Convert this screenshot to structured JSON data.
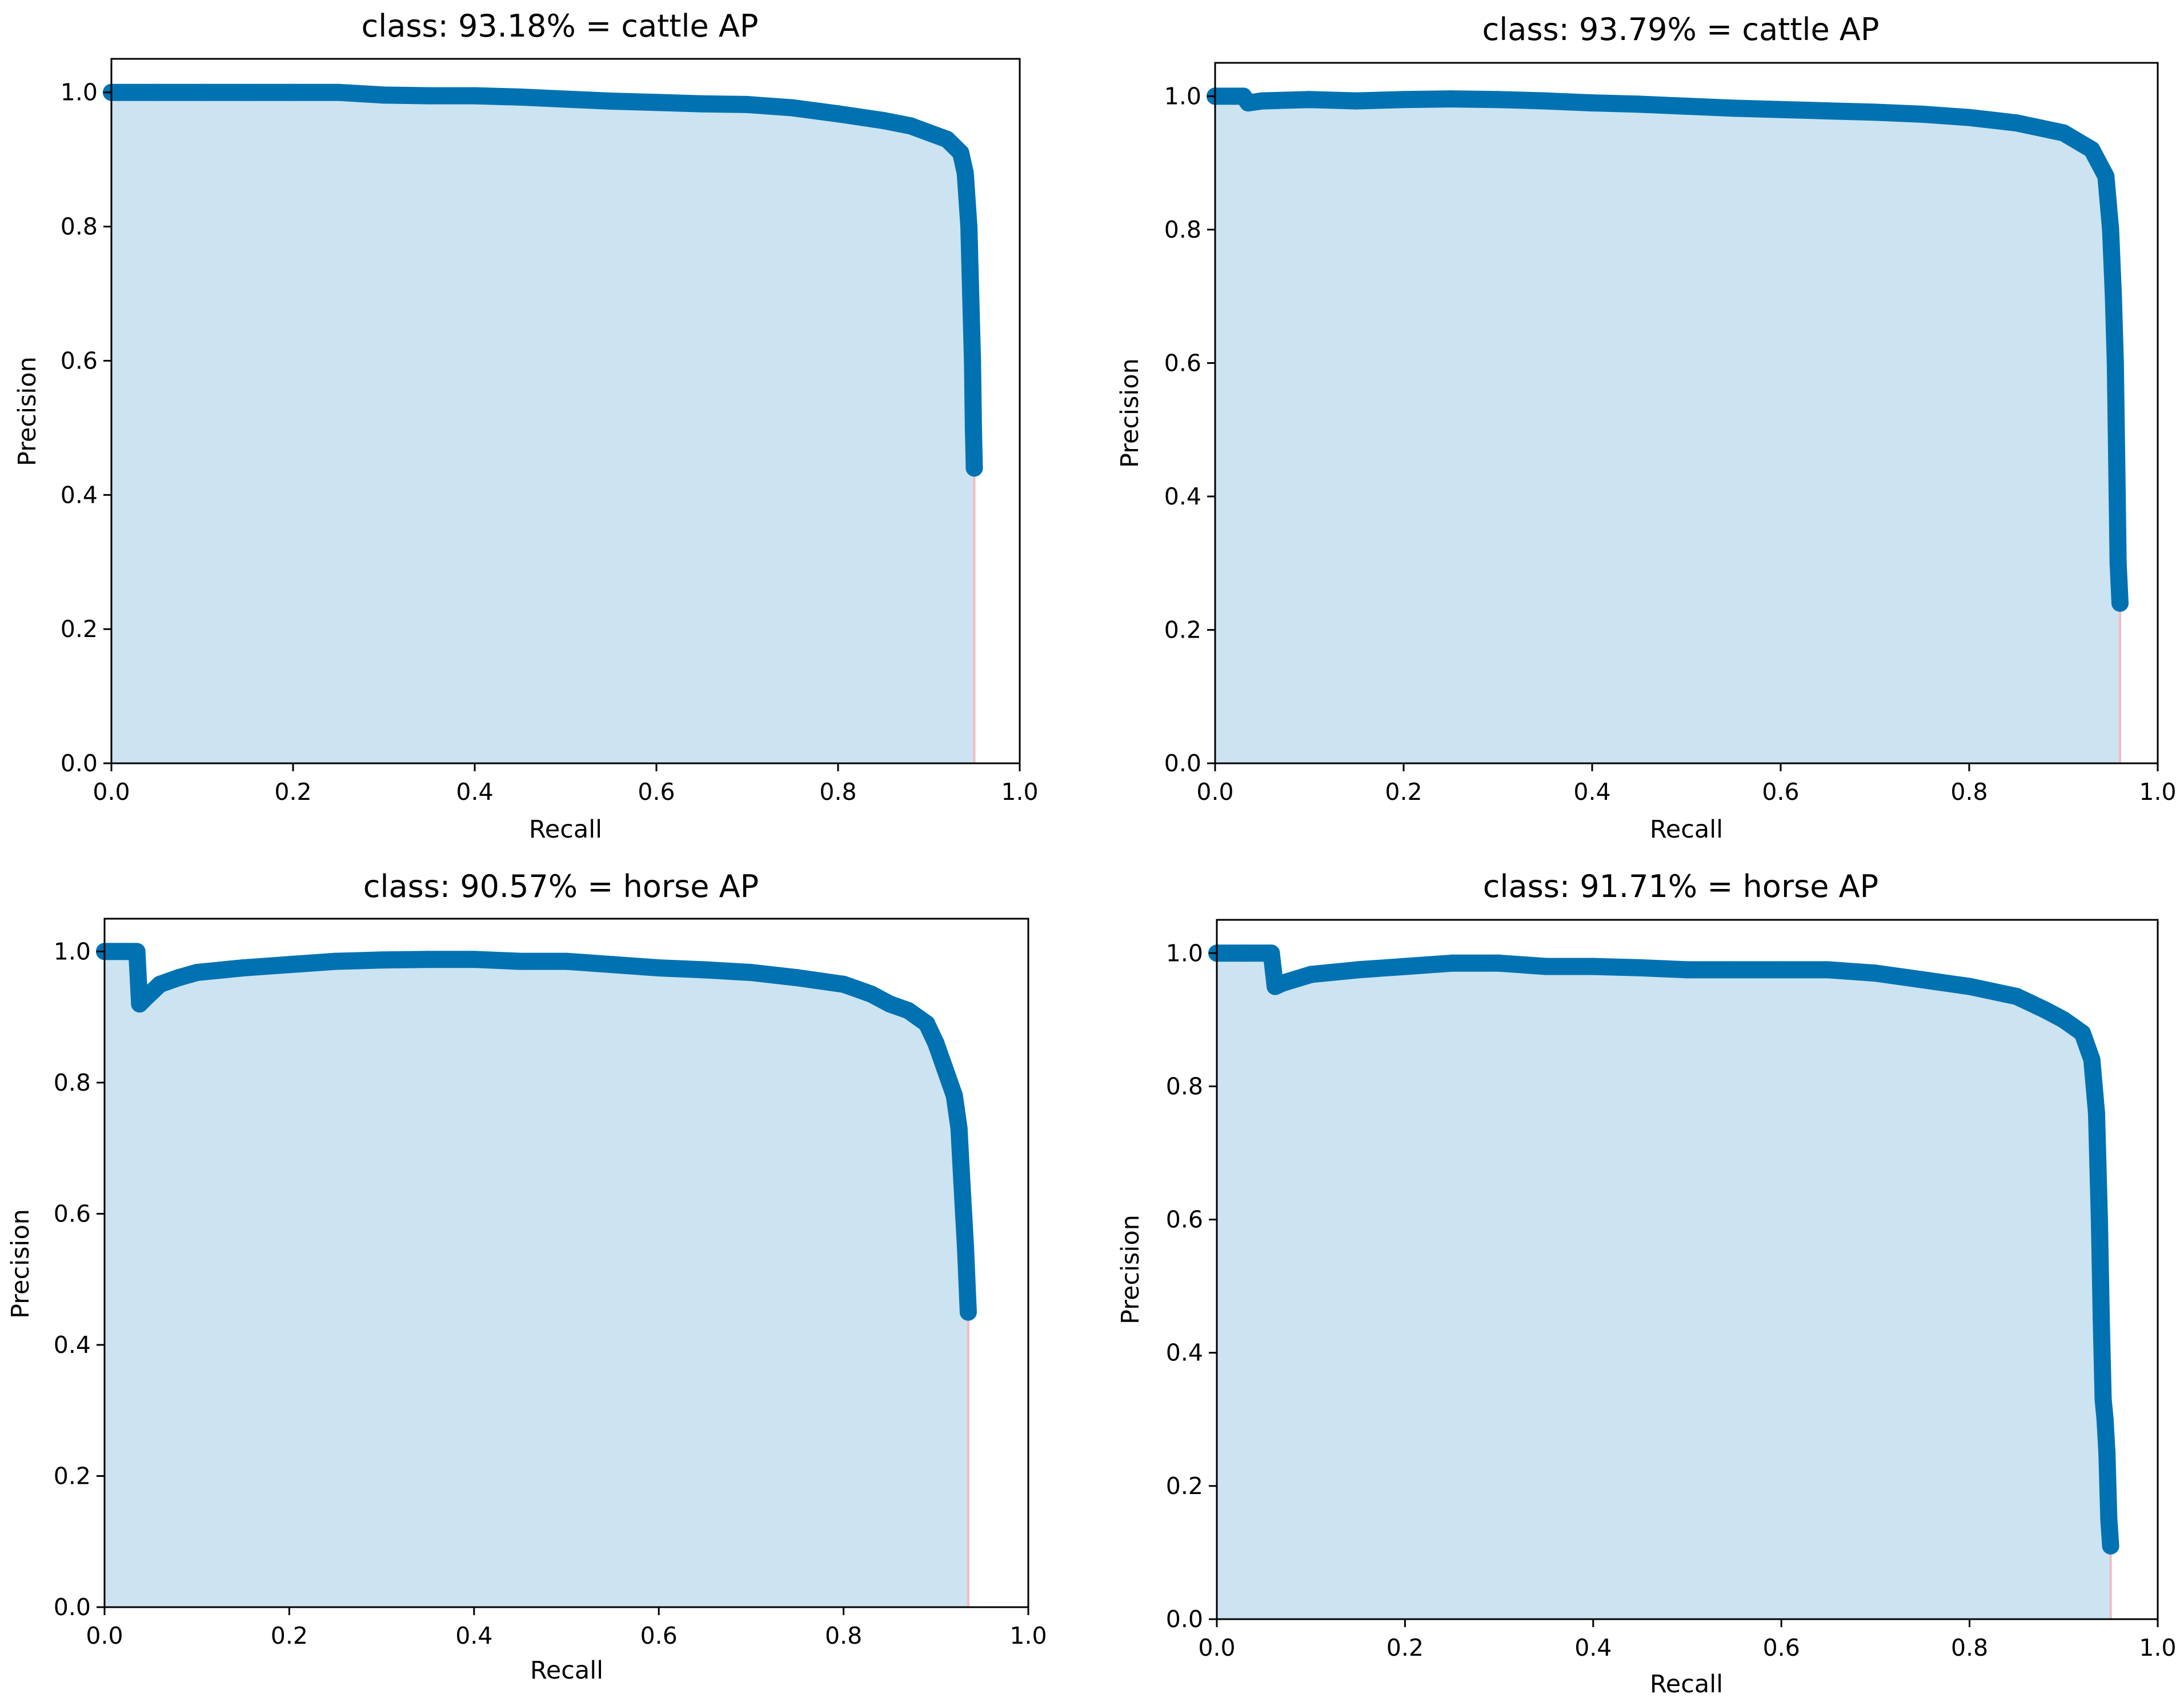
{
  "chart_data": [
    {
      "type": "area",
      "title": "class: 93.18% = cattle AP",
      "xlabel": "Recall",
      "ylabel": "Precision",
      "xlim": [
        0.0,
        1.0
      ],
      "ylim": [
        0.0,
        1.05
      ],
      "xticks": [
        "0.0",
        "0.2",
        "0.4",
        "0.6",
        "0.8",
        "1.0"
      ],
      "yticks": [
        "0.0",
        "0.2",
        "0.4",
        "0.6",
        "0.8",
        "1.0"
      ],
      "grid": false,
      "series": [
        {
          "x": [
            0.0,
            0.05,
            0.1,
            0.15,
            0.2,
            0.25,
            0.3,
            0.35,
            0.4,
            0.45,
            0.5,
            0.55,
            0.6,
            0.65,
            0.7,
            0.75,
            0.8,
            0.85,
            0.88,
            0.9,
            0.92,
            0.935,
            0.94,
            0.944,
            0.946,
            0.948,
            0.949,
            0.95
          ],
          "y": [
            1.0,
            1.0,
            1.0,
            1.0,
            1.0,
            1.0,
            0.996,
            0.995,
            0.995,
            0.993,
            0.99,
            0.987,
            0.985,
            0.983,
            0.982,
            0.977,
            0.968,
            0.958,
            0.95,
            0.94,
            0.93,
            0.91,
            0.88,
            0.8,
            0.7,
            0.6,
            0.5,
            0.44
          ]
        }
      ]
    },
    {
      "type": "area",
      "title": "class: 93.79% = cattle AP",
      "xlabel": "Recall",
      "ylabel": "Precision",
      "xlim": [
        0.0,
        1.0
      ],
      "ylim": [
        0.0,
        1.05
      ],
      "xticks": [
        "0.0",
        "0.2",
        "0.4",
        "0.6",
        "0.8",
        "1.0"
      ],
      "yticks": [
        "0.0",
        "0.2",
        "0.4",
        "0.6",
        "0.8",
        "1.0"
      ],
      "grid": false,
      "series": [
        {
          "x": [
            0.0,
            0.02,
            0.03,
            0.035,
            0.05,
            0.1,
            0.15,
            0.2,
            0.25,
            0.3,
            0.35,
            0.4,
            0.45,
            0.5,
            0.55,
            0.6,
            0.65,
            0.7,
            0.75,
            0.8,
            0.85,
            0.9,
            0.93,
            0.945,
            0.95,
            0.953,
            0.955,
            0.957,
            0.958,
            0.96
          ],
          "y": [
            1.0,
            1.0,
            1.0,
            0.99,
            0.993,
            0.995,
            0.993,
            0.995,
            0.996,
            0.995,
            0.993,
            0.99,
            0.988,
            0.985,
            0.982,
            0.98,
            0.978,
            0.976,
            0.973,
            0.968,
            0.96,
            0.945,
            0.92,
            0.88,
            0.8,
            0.7,
            0.6,
            0.4,
            0.3,
            0.24
          ]
        }
      ]
    },
    {
      "type": "area",
      "title": "class: 90.57% = horse AP",
      "xlabel": "Recall",
      "ylabel": "Precision",
      "xlim": [
        0.0,
        1.0
      ],
      "ylim": [
        0.0,
        1.05
      ],
      "xticks": [
        "0.0",
        "0.2",
        "0.4",
        "0.6",
        "0.8",
        "1.0"
      ],
      "yticks": [
        "0.0",
        "0.2",
        "0.4",
        "0.6",
        "0.8",
        "1.0"
      ],
      "grid": false,
      "series": [
        {
          "x": [
            0.0,
            0.02,
            0.035,
            0.038,
            0.045,
            0.06,
            0.08,
            0.1,
            0.15,
            0.2,
            0.25,
            0.3,
            0.35,
            0.4,
            0.45,
            0.5,
            0.55,
            0.6,
            0.65,
            0.7,
            0.75,
            0.8,
            0.83,
            0.85,
            0.87,
            0.89,
            0.9,
            0.91,
            0.92,
            0.925,
            0.928,
            0.93,
            0.932,
            0.935
          ],
          "y": [
            1.0,
            1.0,
            1.0,
            0.92,
            0.93,
            0.95,
            0.96,
            0.968,
            0.975,
            0.98,
            0.985,
            0.987,
            0.988,
            0.988,
            0.985,
            0.985,
            0.98,
            0.975,
            0.972,
            0.968,
            0.96,
            0.95,
            0.935,
            0.92,
            0.91,
            0.89,
            0.86,
            0.82,
            0.78,
            0.73,
            0.65,
            0.6,
            0.55,
            0.45
          ]
        }
      ]
    },
    {
      "type": "area",
      "title": "class: 91.71% = horse AP",
      "xlabel": "Recall",
      "ylabel": "Precision",
      "xlim": [
        0.0,
        1.0
      ],
      "ylim": [
        0.0,
        1.05
      ],
      "xticks": [
        "0.0",
        "0.2",
        "0.4",
        "0.6",
        "0.8",
        "1.0"
      ],
      "yticks": [
        "0.0",
        "0.2",
        "0.4",
        "0.6",
        "0.8",
        "1.0"
      ],
      "grid": false,
      "series": [
        {
          "x": [
            0.0,
            0.03,
            0.058,
            0.062,
            0.07,
            0.1,
            0.15,
            0.2,
            0.25,
            0.3,
            0.35,
            0.4,
            0.45,
            0.5,
            0.55,
            0.6,
            0.65,
            0.7,
            0.75,
            0.8,
            0.85,
            0.88,
            0.9,
            0.92,
            0.93,
            0.935,
            0.938,
            0.94,
            0.942,
            0.944,
            0.946,
            0.948,
            0.95
          ],
          "y": [
            1.0,
            1.0,
            1.0,
            0.95,
            0.955,
            0.968,
            0.975,
            0.98,
            0.985,
            0.985,
            0.98,
            0.98,
            0.978,
            0.975,
            0.975,
            0.975,
            0.975,
            0.97,
            0.96,
            0.95,
            0.935,
            0.915,
            0.9,
            0.88,
            0.84,
            0.76,
            0.6,
            0.45,
            0.33,
            0.3,
            0.25,
            0.15,
            0.11
          ]
        }
      ]
    }
  ],
  "colors": {
    "line": "#0072b2",
    "fill": "#cce3f1",
    "edge": "#f4b8c4",
    "axes": "#000000",
    "background": "#ffffff"
  }
}
